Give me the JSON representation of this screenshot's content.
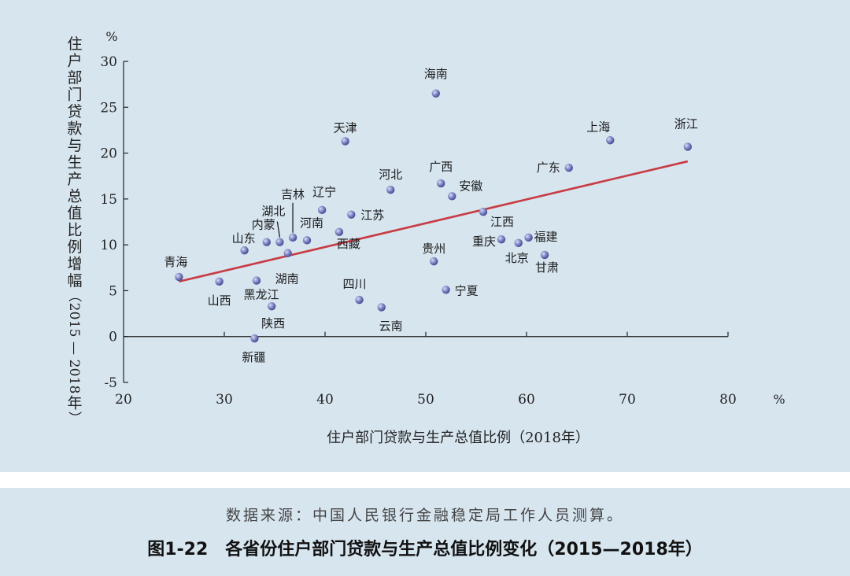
{
  "caption": {
    "figure_number": "图1-22",
    "title": "各省份住户部门贷款与生产总值比例变化（2015—2018年）",
    "source": "数据来源：中国人民银行金融稳定局工作人员测算。"
  },
  "colors": {
    "background": "#d7e5ef",
    "point": "#5f63a8",
    "trend_line": "#c83c44",
    "axis": "#222222"
  },
  "chart_data": {
    "type": "scatter",
    "xlabel": "住户部门贷款与生产总值比例（2018年）",
    "ylabel": "住户部门贷款与生产总值比例增幅（2015—2018年）",
    "x_unit": "%",
    "y_unit": "%",
    "xlim": [
      20,
      80
    ],
    "ylim": [
      -5,
      30
    ],
    "xticks": [
      20,
      30,
      40,
      50,
      60,
      70,
      80
    ],
    "yticks": [
      -5,
      0,
      5,
      10,
      15,
      20,
      25,
      30
    ],
    "grid": false,
    "points": [
      {
        "label": "海南",
        "x": 51.0,
        "y": 26.5
      },
      {
        "label": "天津",
        "x": 42.0,
        "y": 21.3
      },
      {
        "label": "上海",
        "x": 68.3,
        "y": 21.4
      },
      {
        "label": "浙江",
        "x": 76.0,
        "y": 20.7
      },
      {
        "label": "广东",
        "x": 64.2,
        "y": 18.4
      },
      {
        "label": "广西",
        "x": 51.5,
        "y": 16.7
      },
      {
        "label": "河北",
        "x": 46.5,
        "y": 16.0
      },
      {
        "label": "安徽",
        "x": 52.6,
        "y": 15.3
      },
      {
        "label": "辽宁",
        "x": 39.7,
        "y": 13.8
      },
      {
        "label": "江西",
        "x": 55.7,
        "y": 13.6
      },
      {
        "label": "江苏",
        "x": 42.6,
        "y": 13.3
      },
      {
        "label": "西藏",
        "x": 41.4,
        "y": 11.4
      },
      {
        "label": "吉林",
        "x": 36.8,
        "y": 10.8
      },
      {
        "label": "福建",
        "x": 60.2,
        "y": 10.8
      },
      {
        "label": "河南",
        "x": 38.2,
        "y": 10.5
      },
      {
        "label": "重庆",
        "x": 57.5,
        "y": 10.6
      },
      {
        "label": "内蒙",
        "x": 34.2,
        "y": 10.3
      },
      {
        "label": "湖北",
        "x": 35.5,
        "y": 10.3
      },
      {
        "label": "北京",
        "x": 59.2,
        "y": 10.2
      },
      {
        "label": "山东",
        "x": 32.0,
        "y": 9.4
      },
      {
        "label": "湖南",
        "x": 36.3,
        "y": 9.1
      },
      {
        "label": "甘肃",
        "x": 61.8,
        "y": 8.9
      },
      {
        "label": "贵州",
        "x": 50.8,
        "y": 8.2
      },
      {
        "label": "青海",
        "x": 25.5,
        "y": 6.5
      },
      {
        "label": "山西",
        "x": 29.5,
        "y": 6.0
      },
      {
        "label": "黑龙江",
        "x": 33.2,
        "y": 6.1
      },
      {
        "label": "宁夏",
        "x": 52.0,
        "y": 5.1
      },
      {
        "label": "四川",
        "x": 43.4,
        "y": 4.0
      },
      {
        "label": "陕西",
        "x": 34.7,
        "y": 3.3
      },
      {
        "label": "云南",
        "x": 45.6,
        "y": 3.2
      },
      {
        "label": "新疆",
        "x": 33.0,
        "y": -0.2
      }
    ],
    "trend_line": {
      "x": [
        25.5,
        76.0
      ],
      "y": [
        6.0,
        19.1
      ]
    }
  }
}
